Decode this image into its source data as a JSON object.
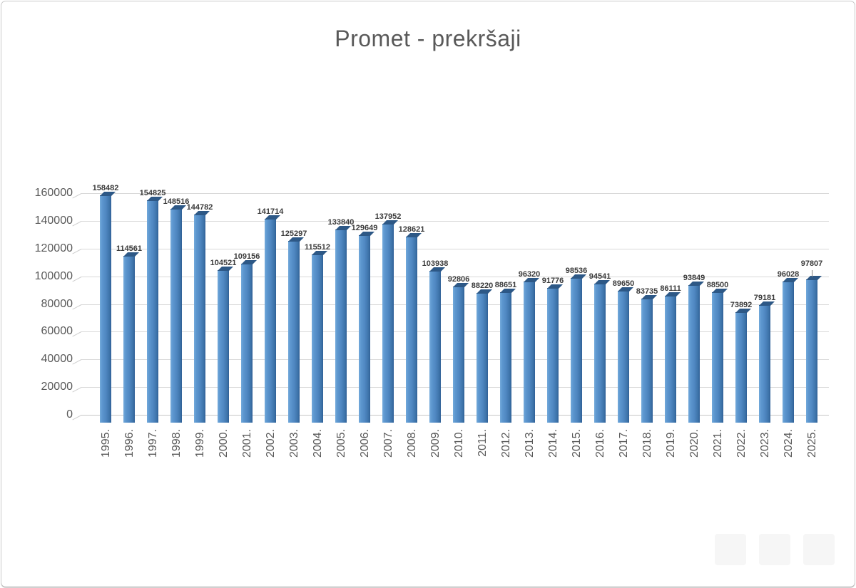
{
  "chart_data": {
    "type": "bar",
    "title": "Promet - prekršaji",
    "categories": [
      "1995.",
      "1996.",
      "1997.",
      "1998.",
      "1999.",
      "2000.",
      "2001.",
      "2002.",
      "2003.",
      "2004.",
      "2005.",
      "2006.",
      "2007.",
      "2008.",
      "2009.",
      "2010.",
      "2011.",
      "2012.",
      "2013.",
      "2014.",
      "2015.",
      "2016.",
      "2017.",
      "2018.",
      "2019.",
      "2020.",
      "2021.",
      "2022.",
      "2023.",
      "2024.",
      "2025."
    ],
    "values": [
      158482,
      114561,
      154825,
      148516,
      144782,
      104521,
      109156,
      141714,
      125297,
      115512,
      133840,
      129649,
      137952,
      128621,
      103938,
      92806,
      88220,
      88651,
      96320,
      91776,
      98536,
      94541,
      89650,
      83735,
      86111,
      93849,
      88500,
      73892,
      79181,
      96028,
      97807
    ],
    "xlabel": "",
    "ylabel": "",
    "ylim": [
      0,
      160000
    ],
    "yticks": [
      0,
      20000,
      40000,
      60000,
      80000,
      100000,
      120000,
      140000,
      160000
    ],
    "grid": true,
    "legend": "none",
    "data_labels": true,
    "style_3d": true,
    "colors": {
      "bar_face": "#4e86c0",
      "bar_side_dark": "#2f5f96",
      "bar_top_dark": "#2d5886",
      "gridline": "#d9d9d9",
      "axis_text": "#595959",
      "data_label_text": "#3b3b3b",
      "title_text": "#595959",
      "frame_border": "#c9c9c9"
    }
  }
}
